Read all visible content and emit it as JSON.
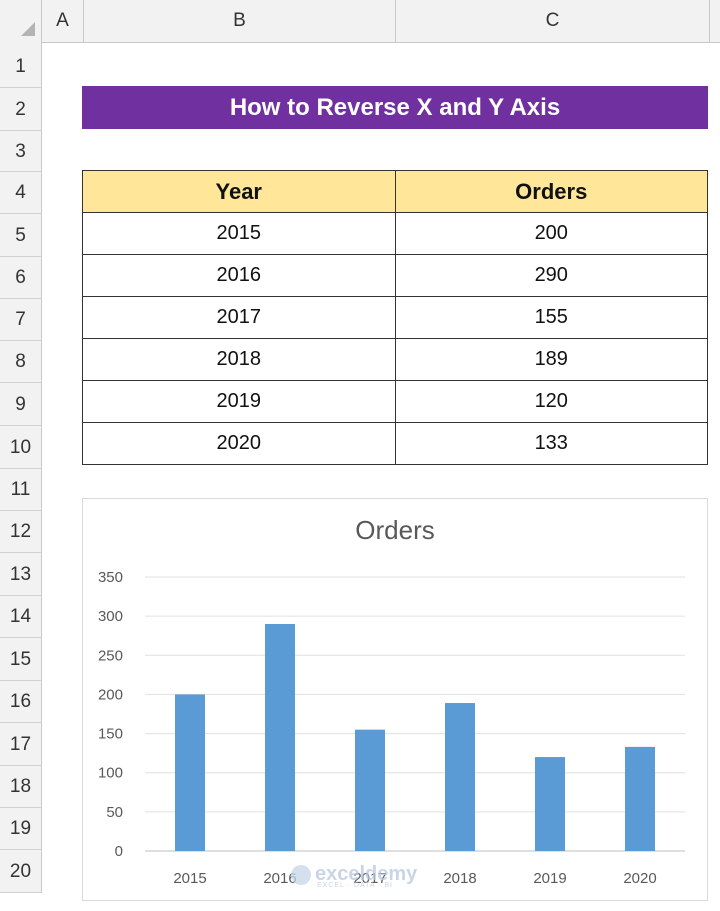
{
  "columns": [
    "A",
    "B",
    "C"
  ],
  "rows": [
    "1",
    "2",
    "3",
    "4",
    "5",
    "6",
    "7",
    "8",
    "9",
    "10",
    "11",
    "12",
    "13",
    "14",
    "15",
    "16",
    "17",
    "18",
    "19",
    "20"
  ],
  "banner": {
    "title": "How to Reverse X and Y Axis"
  },
  "table": {
    "headers": [
      "Year",
      "Orders"
    ],
    "rows": [
      [
        "2015",
        "200"
      ],
      [
        "2016",
        "290"
      ],
      [
        "2017",
        "155"
      ],
      [
        "2018",
        "189"
      ],
      [
        "2019",
        "120"
      ],
      [
        "2020",
        "133"
      ]
    ]
  },
  "colors": {
    "banner": "#7030a0",
    "header_fill": "#ffe699",
    "bar": "#5b9bd5"
  },
  "watermark": {
    "text": "exceldemy",
    "sub": "EXCEL · DATA · BI"
  },
  "chart_data": {
    "type": "bar",
    "title": "Orders",
    "categories": [
      "2015",
      "2016",
      "2017",
      "2018",
      "2019",
      "2020"
    ],
    "series": [
      {
        "values": [
          200,
          290,
          155,
          189,
          120,
          133
        ]
      }
    ],
    "ylim": [
      0,
      350
    ],
    "yticks": [
      0,
      50,
      100,
      150,
      200,
      250,
      300,
      350
    ],
    "grid": true,
    "xlabel": "",
    "ylabel": ""
  }
}
